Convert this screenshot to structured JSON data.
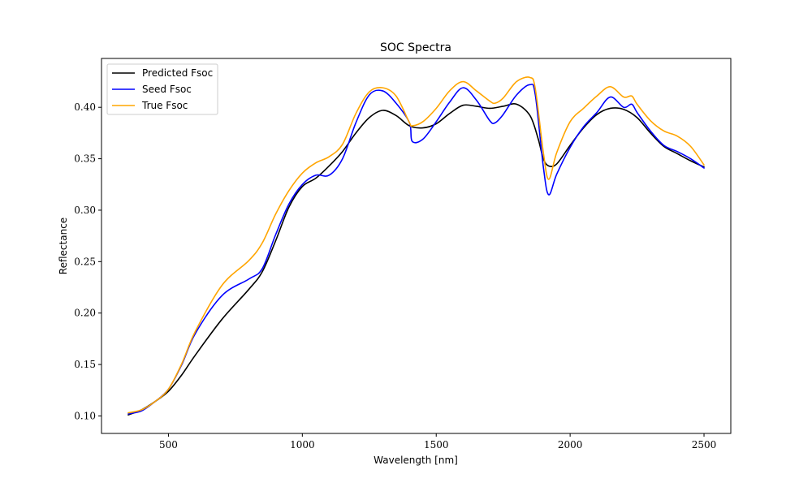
{
  "chart_data": {
    "type": "line",
    "title": "SOC Spectra",
    "xlabel": "Wavelength [nm]",
    "ylabel": "Reflectance",
    "xlim": [
      250,
      2600
    ],
    "ylim": [
      0.083,
      0.4475
    ],
    "xticks": [
      500,
      1000,
      1500,
      2000,
      2500
    ],
    "xtick_labels": [
      "500",
      "1000",
      "1500",
      "2000",
      "2500"
    ],
    "yticks": [
      0.1,
      0.15,
      0.2,
      0.25,
      0.3,
      0.35,
      0.4
    ],
    "ytick_labels": [
      "0.10",
      "0.15",
      "0.20",
      "0.25",
      "0.30",
      "0.35",
      "0.40"
    ],
    "grid": false,
    "legend_position": "top-left",
    "series": [
      {
        "name": "Predicted Fsoc",
        "color": "#000000",
        "x": [
          350,
          400,
          450,
          500,
          550,
          600,
          700,
          800,
          850,
          900,
          950,
          1000,
          1050,
          1100,
          1150,
          1200,
          1250,
          1300,
          1350,
          1400,
          1450,
          1500,
          1550,
          1600,
          1650,
          1700,
          1750,
          1800,
          1850,
          1880,
          1900,
          1920,
          1950,
          2000,
          2050,
          2100,
          2150,
          2200,
          2250,
          2300,
          2350,
          2400,
          2450,
          2500
        ],
        "y": [
          0.101,
          0.106,
          0.114,
          0.124,
          0.14,
          0.159,
          0.194,
          0.223,
          0.24,
          0.27,
          0.303,
          0.323,
          0.331,
          0.343,
          0.357,
          0.375,
          0.39,
          0.397,
          0.392,
          0.382,
          0.38,
          0.384,
          0.394,
          0.402,
          0.401,
          0.399,
          0.401,
          0.403,
          0.392,
          0.37,
          0.35,
          0.343,
          0.345,
          0.363,
          0.38,
          0.393,
          0.399,
          0.398,
          0.39,
          0.375,
          0.362,
          0.355,
          0.348,
          0.342
        ]
      },
      {
        "name": "Seed Fsoc",
        "color": "#0000ff",
        "x": [
          350,
          400,
          450,
          500,
          550,
          600,
          700,
          800,
          850,
          900,
          950,
          1000,
          1050,
          1100,
          1150,
          1200,
          1250,
          1300,
          1350,
          1400,
          1410,
          1450,
          1500,
          1550,
          1600,
          1650,
          1700,
          1720,
          1750,
          1800,
          1850,
          1870,
          1900,
          1920,
          1950,
          2000,
          2050,
          2100,
          2150,
          2200,
          2230,
          2250,
          2300,
          2350,
          2400,
          2450,
          2500
        ],
        "y": [
          0.102,
          0.105,
          0.114,
          0.126,
          0.15,
          0.18,
          0.217,
          0.233,
          0.243,
          0.276,
          0.306,
          0.325,
          0.334,
          0.334,
          0.35,
          0.385,
          0.412,
          0.416,
          0.404,
          0.385,
          0.367,
          0.369,
          0.386,
          0.405,
          0.419,
          0.407,
          0.387,
          0.385,
          0.393,
          0.412,
          0.422,
          0.412,
          0.342,
          0.315,
          0.335,
          0.361,
          0.381,
          0.395,
          0.41,
          0.4,
          0.403,
          0.395,
          0.377,
          0.363,
          0.357,
          0.35,
          0.341
        ]
      },
      {
        "name": "True Fsoc",
        "color": "#ffa500",
        "x": [
          350,
          400,
          450,
          500,
          550,
          600,
          700,
          800,
          850,
          900,
          950,
          1000,
          1050,
          1100,
          1150,
          1200,
          1250,
          1300,
          1350,
          1400,
          1410,
          1450,
          1500,
          1550,
          1600,
          1650,
          1700,
          1720,
          1750,
          1800,
          1850,
          1870,
          1900,
          1920,
          1950,
          2000,
          2050,
          2100,
          2150,
          2200,
          2230,
          2250,
          2300,
          2350,
          2400,
          2450,
          2500
        ],
        "y": [
          0.103,
          0.106,
          0.114,
          0.126,
          0.151,
          0.182,
          0.227,
          0.251,
          0.268,
          0.296,
          0.319,
          0.336,
          0.346,
          0.352,
          0.364,
          0.394,
          0.415,
          0.419,
          0.411,
          0.385,
          0.382,
          0.386,
          0.399,
          0.416,
          0.425,
          0.416,
          0.406,
          0.404,
          0.409,
          0.425,
          0.429,
          0.418,
          0.356,
          0.33,
          0.356,
          0.386,
          0.399,
          0.411,
          0.42,
          0.41,
          0.411,
          0.403,
          0.387,
          0.377,
          0.372,
          0.362,
          0.344
        ]
      }
    ]
  }
}
